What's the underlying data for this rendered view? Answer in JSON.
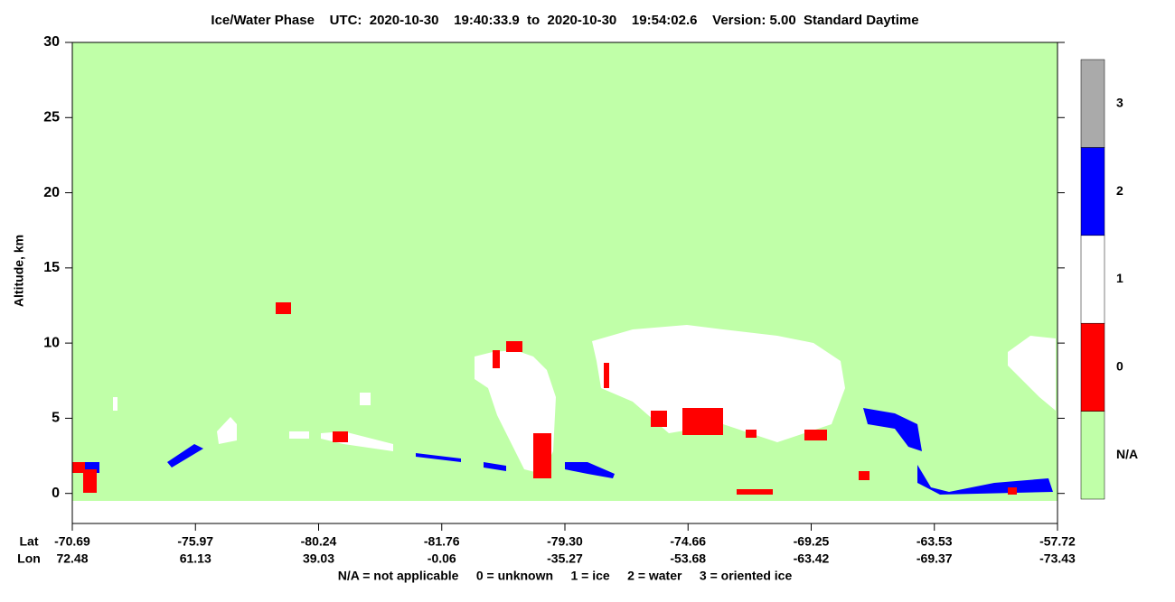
{
  "chart_data": {
    "type": "curtain",
    "title": "Ice/Water Phase    UTC:  2020-10-30    19:40:33.9  to  2020-10-30    19:54:02.6    Version: 5.00  Standard Daytime",
    "y_label": "Altitude, km",
    "ylim": [
      -2,
      30
    ],
    "yticks": [
      0,
      5,
      10,
      15,
      20,
      25,
      30
    ],
    "background_color": "#c0ffa8",
    "x_row_labels": [
      "Lat",
      "Lon"
    ],
    "lat": [
      "-70.69",
      "-75.97",
      "-80.24",
      "-81.76",
      "-79.30",
      "-74.66",
      "-69.25",
      "-63.53",
      "-57.72"
    ],
    "lon": [
      "72.48",
      "61.13",
      "39.03",
      "-0.06",
      "-35.27",
      "-53.68",
      "-63.42",
      "-69.37",
      "-73.43"
    ],
    "colorbar": {
      "labels": [
        "N/A",
        "0",
        "1",
        "2",
        "3"
      ],
      "colors": [
        "#c0ffa8",
        "#ff0000",
        "#ffffff",
        "#0000ff",
        "#aaaaaa"
      ]
    },
    "legend_text": "N/A = not applicable     0 = unknown     1 = ice     2 = water     3 = oriented ice"
  }
}
